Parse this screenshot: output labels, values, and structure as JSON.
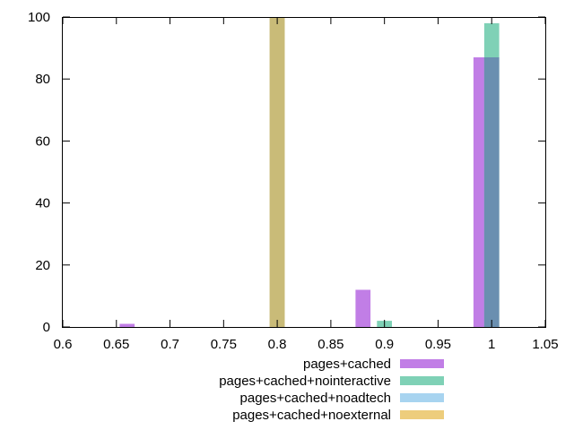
{
  "chart_data": {
    "type": "bar",
    "title": "",
    "xlabel": "",
    "ylabel": "",
    "xlim": [
      0.6,
      1.05
    ],
    "ylim": [
      0,
      100
    ],
    "x_ticks": [
      "0.6",
      "0.65",
      "0.7",
      "0.75",
      "0.8",
      "0.85",
      "0.9",
      "0.95",
      "1",
      "1.05"
    ],
    "y_ticks": [
      "0",
      "20",
      "40",
      "60",
      "80",
      "100"
    ],
    "grid": false,
    "legend_position": "bottom",
    "series": [
      {
        "name": "pages+cached",
        "color": "#c17ee6",
        "points": [
          {
            "x": 0.66,
            "y": 1
          },
          {
            "x": 0.88,
            "y": 12
          },
          {
            "x": 0.99,
            "y": 87
          }
        ]
      },
      {
        "name": "pages+cached+nointeractive",
        "color": "#7fd1b6",
        "points": [
          {
            "x": 0.9,
            "y": 2
          },
          {
            "x": 1.0,
            "y": 98
          }
        ]
      },
      {
        "name": "pages+cached+noadtech",
        "color": "#a8d4f0",
        "points": [
          {
            "x": 0.8,
            "y": 100
          },
          {
            "x": 1.0,
            "y": 87
          }
        ]
      },
      {
        "name": "pages+cached+noexternal",
        "color": "#edcd7c",
        "points": [
          {
            "x": 0.8,
            "y": 100
          },
          {
            "x": 1.0,
            "y": 87
          }
        ]
      }
    ]
  }
}
